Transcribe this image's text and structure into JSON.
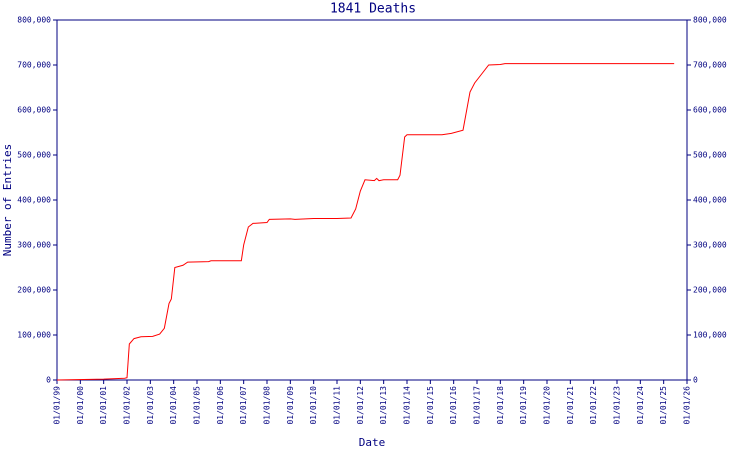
{
  "chart_data": {
    "type": "line",
    "title": "1841 Deaths",
    "x_label": "Date",
    "y_label": "Number of Entries",
    "x": [
      1999.0,
      2001.0,
      2001.9,
      2002.0,
      2002.1,
      2002.3,
      2002.6,
      2003.1,
      2003.4,
      2003.6,
      2003.8,
      2003.9,
      2004.05,
      2004.4,
      2004.6,
      2005.5,
      2005.6,
      2006.9,
      2007.0,
      2007.2,
      2007.4,
      2008.0,
      2008.1,
      2009.0,
      2009.2,
      2010.0,
      2011.0,
      2011.6,
      2011.8,
      2012.0,
      2012.2,
      2012.6,
      2012.7,
      2012.8,
      2013.0,
      2013.6,
      2013.7,
      2013.9,
      2014.0,
      2015.5,
      2015.9,
      2016.4,
      2016.7,
      2016.9,
      2017.2,
      2017.5,
      2018.0,
      2018.2,
      2025.45
    ],
    "series": [
      {
        "name": "1841 Deaths",
        "color": "#ff0000",
        "values": [
          0,
          2000,
          4000,
          5000,
          80000,
          92000,
          96000,
          97000,
          102000,
          115000,
          170000,
          180000,
          250000,
          255000,
          262000,
          263000,
          265000,
          265000,
          300000,
          340000,
          348000,
          350000,
          357000,
          358000,
          357000,
          359000,
          359000,
          360000,
          380000,
          420000,
          445000,
          443000,
          448000,
          443000,
          445000,
          445000,
          455000,
          540000,
          545000,
          545000,
          548000,
          555000,
          640000,
          660000,
          680000,
          700000,
          701000,
          703000,
          703000
        ]
      }
    ],
    "xlim": [
      1999,
      2026
    ],
    "xticks": [
      {
        "value": 1999,
        "label": "01/01/99"
      },
      {
        "value": 2000,
        "label": "01/01/00"
      },
      {
        "value": 2001,
        "label": "01/01/01"
      },
      {
        "value": 2002,
        "label": "01/01/02"
      },
      {
        "value": 2003,
        "label": "01/01/03"
      },
      {
        "value": 2004,
        "label": "01/01/04"
      },
      {
        "value": 2005,
        "label": "01/01/05"
      },
      {
        "value": 2006,
        "label": "01/01/06"
      },
      {
        "value": 2007,
        "label": "01/01/07"
      },
      {
        "value": 2008,
        "label": "01/01/08"
      },
      {
        "value": 2009,
        "label": "01/01/09"
      },
      {
        "value": 2010,
        "label": "01/01/10"
      },
      {
        "value": 2011,
        "label": "01/01/11"
      },
      {
        "value": 2012,
        "label": "01/01/12"
      },
      {
        "value": 2013,
        "label": "01/01/13"
      },
      {
        "value": 2014,
        "label": "01/01/14"
      },
      {
        "value": 2015,
        "label": "01/01/15"
      },
      {
        "value": 2016,
        "label": "01/01/16"
      },
      {
        "value": 2017,
        "label": "01/01/17"
      },
      {
        "value": 2018,
        "label": "01/01/18"
      },
      {
        "value": 2019,
        "label": "01/01/19"
      },
      {
        "value": 2020,
        "label": "01/01/20"
      },
      {
        "value": 2021,
        "label": "01/01/21"
      },
      {
        "value": 2022,
        "label": "01/01/22"
      },
      {
        "value": 2023,
        "label": "01/01/23"
      },
      {
        "value": 2024,
        "label": "01/01/24"
      },
      {
        "value": 2025,
        "label": "01/01/25"
      },
      {
        "value": 2026,
        "label": "01/01/26"
      }
    ],
    "ylim": [
      0,
      800000
    ],
    "yticks": [
      0,
      {
        "value": 100000,
        "label": "100,000"
      },
      {
        "value": 200000,
        "label": "200,000"
      },
      {
        "value": 300000,
        "label": "300,000"
      },
      {
        "value": 400000,
        "label": "400,000"
      },
      {
        "value": 500000,
        "label": "500,000"
      },
      {
        "value": 600000,
        "label": "600,000"
      },
      {
        "value": 700000,
        "label": "700,000"
      },
      {
        "value": 800000,
        "label": "800,000"
      }
    ],
    "y2lim": [
      0,
      800000
    ],
    "y2ticks": [
      0,
      {
        "value": 100000,
        "label": "100,000"
      },
      {
        "value": 200000,
        "label": "200,000"
      },
      {
        "value": 300000,
        "label": "300,000"
      },
      {
        "value": 400000,
        "label": "400,000"
      },
      {
        "value": 500000,
        "label": "500,000"
      },
      {
        "value": 600000,
        "label": "600,000"
      },
      {
        "value": 700000,
        "label": "700,000"
      },
      {
        "value": 800000,
        "label": "800,000"
      }
    ],
    "axis_color": "#000080",
    "grid": false
  }
}
